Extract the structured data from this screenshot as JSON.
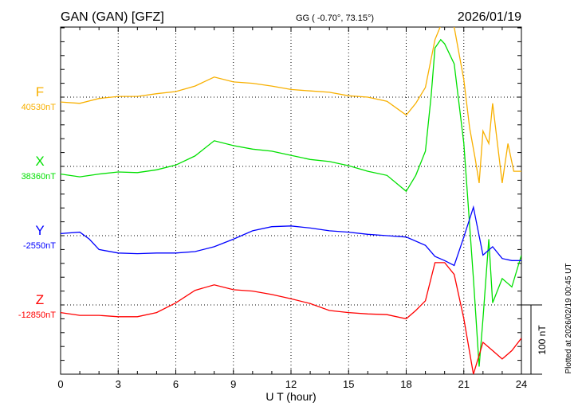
{
  "header": {
    "station": "GAN (GAN)  [GFZ]",
    "coords": "GG ( -0.70°,  73.15°)",
    "date": "2026/01/19"
  },
  "footer": {
    "plotted": "Plotted at 2026/02/19 00:45 UT"
  },
  "chart_data": {
    "type": "line",
    "xlabel": "U T (hour)",
    "xlim": [
      0,
      24
    ],
    "xticks": [
      "0",
      "3",
      "6",
      "9",
      "12",
      "15",
      "18",
      "21",
      "24"
    ],
    "scale_label": "100 nT",
    "scale_nT": 100,
    "grid": "dotted, every 3 hours and at each component baseline",
    "units": "nT offset from baseline",
    "series": [
      {
        "name": "F",
        "baseline_label": "40530nT",
        "color": "#f8b000",
        "x": [
          0,
          1,
          2,
          3,
          4,
          5,
          6,
          7,
          8,
          9,
          10,
          11,
          12,
          13,
          14,
          15,
          16,
          17,
          18,
          18.5,
          19,
          19.5,
          20,
          20.5,
          21,
          21.3,
          21.6,
          21.8,
          22,
          22.3,
          22.5,
          23,
          23.3,
          23.6,
          24
        ],
        "y": [
          -7,
          -9,
          -2,
          1,
          1,
          5,
          8,
          16,
          29,
          22,
          20,
          16,
          11,
          9,
          7,
          2,
          0,
          -6,
          -26,
          -9,
          14,
          83,
          117,
          101,
          25,
          -44,
          -90,
          -124,
          -49,
          -67,
          -9,
          -124,
          -67,
          -107,
          -107
        ]
      },
      {
        "name": "X",
        "baseline_label": "38360nT",
        "color": "#00e000",
        "x": [
          0,
          1,
          2,
          3,
          4,
          5,
          6,
          7,
          8,
          9,
          10,
          11,
          12,
          13,
          14,
          15,
          16,
          17,
          18,
          18.5,
          19,
          19.3,
          19.5,
          19.8,
          20,
          20.5,
          21,
          21.5,
          21.8,
          22,
          22.3,
          22.5,
          23,
          23.5,
          24
        ],
        "y": [
          -11,
          -15,
          -11,
          -8,
          -9,
          -5,
          2,
          15,
          37,
          30,
          25,
          22,
          16,
          10,
          7,
          1,
          -7,
          -13,
          -36,
          -13,
          22,
          102,
          171,
          183,
          177,
          148,
          33,
          -162,
          -289,
          -220,
          -105,
          -197,
          -162,
          -174,
          -128
        ]
      },
      {
        "name": "Y",
        "baseline_label": "-2550nT",
        "color": "#0000ff",
        "x": [
          0,
          1,
          1.5,
          2,
          3,
          4,
          5,
          6,
          7,
          8,
          9,
          10,
          11,
          12,
          13,
          14,
          15,
          16,
          17,
          18,
          19,
          19.5,
          20,
          20.5,
          21,
          21.5,
          22,
          22.5,
          23,
          23.5,
          24
        ],
        "y": [
          3,
          5,
          -5,
          -20,
          -25,
          -26,
          -25,
          -25,
          -23,
          -16,
          -5,
          7,
          13,
          14,
          11,
          7,
          5,
          2,
          0,
          -2,
          -14,
          -30,
          -36,
          -43,
          -2,
          41,
          -28,
          -16,
          -33,
          -36,
          -36
        ]
      },
      {
        "name": "Z",
        "baseline_label": "-12850nT",
        "color": "#ff0000",
        "x": [
          0,
          1,
          2,
          3,
          4,
          5,
          6,
          7,
          8,
          9,
          10,
          11,
          12,
          13,
          14,
          15,
          16,
          17,
          18,
          18.5,
          19,
          19.5,
          20,
          20.5,
          21,
          21.5,
          22,
          22.5,
          23,
          23.5,
          24
        ],
        "y": [
          -11,
          -15,
          -15,
          -17,
          -17,
          -11,
          3,
          21,
          29,
          22,
          20,
          15,
          9,
          2,
          -8,
          -11,
          -13,
          -14,
          -20,
          -8,
          6,
          61,
          61,
          44,
          -20,
          -100,
          -54,
          -66,
          -78,
          -66,
          -48
        ]
      }
    ]
  }
}
